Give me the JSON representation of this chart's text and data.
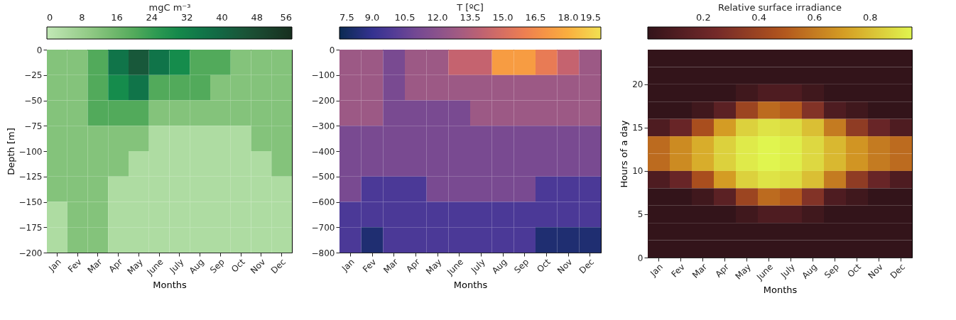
{
  "chart_data": [
    {
      "type": "heatmap",
      "xlabel": "Months",
      "ylabel": "Depth [m]",
      "clabel": "mgC m⁻³",
      "categories": [
        "Jan",
        "Fev",
        "Mar",
        "Apr",
        "May",
        "June",
        "July",
        "Aug",
        "Sep",
        "Oct",
        "Nov",
        "Dec"
      ],
      "ylim": [
        -200,
        0
      ],
      "yticks": [
        0,
        -25,
        -50,
        -75,
        -100,
        -125,
        -150,
        -175,
        -200
      ],
      "clim": [
        0,
        56
      ],
      "cticks": [
        0,
        8,
        16,
        24,
        32,
        40,
        48,
        56
      ],
      "colors": [
        "#c2e8b6",
        "#94cb87",
        "#5cae5e",
        "#16904c",
        "#0f6f48",
        "#1c4f35",
        "#172f1f"
      ],
      "cells": [
        [
          12,
          12,
          20,
          36,
          44,
          36,
          29,
          20,
          20,
          12,
          12,
          12
        ],
        [
          12,
          12,
          20,
          29,
          36,
          20,
          20,
          20,
          12,
          12,
          12,
          12
        ],
        [
          12,
          12,
          20,
          20,
          20,
          12,
          12,
          12,
          12,
          12,
          12,
          12
        ],
        [
          12,
          12,
          12,
          12,
          12,
          4,
          4,
          4,
          4,
          4,
          12,
          12
        ],
        [
          12,
          12,
          12,
          12,
          4,
          4,
          4,
          4,
          4,
          4,
          4,
          12
        ],
        [
          12,
          12,
          12,
          4,
          4,
          4,
          4,
          4,
          4,
          4,
          4,
          4
        ],
        [
          4,
          12,
          12,
          4,
          4,
          4,
          4,
          4,
          4,
          4,
          4,
          4
        ],
        [
          4,
          12,
          12,
          4,
          4,
          4,
          4,
          4,
          4,
          4,
          4,
          4
        ]
      ]
    },
    {
      "type": "heatmap",
      "xlabel": "Months",
      "clabel": "T [ºC]",
      "categories": [
        "Jan",
        "Fev",
        "Mar",
        "Apr",
        "May",
        "June",
        "July",
        "Aug",
        "Sep",
        "Oct",
        "Nov",
        "Dec"
      ],
      "ylim": [
        -800,
        0
      ],
      "yticks": [
        0,
        -100,
        -200,
        -300,
        -400,
        -500,
        -600,
        -700,
        -800
      ],
      "clim": [
        7.5,
        19.5
      ],
      "cticks": [
        {
          "value": 7.5,
          "label": "7.5"
        },
        {
          "value": 9,
          "label": "9.0"
        },
        {
          "value": 10.5,
          "label": "10.5"
        },
        {
          "value": 12,
          "label": "12.0"
        },
        {
          "value": 13.5,
          "label": "13.5"
        },
        {
          "value": 15,
          "label": "15.0"
        },
        {
          "value": 16.5,
          "label": "16.5"
        },
        {
          "value": 18,
          "label": "18.0"
        },
        {
          "value": 19.5,
          "label": "19.5"
        }
      ],
      "colors": [
        "#0a2a52",
        "#3a3399",
        "#714793",
        "#995887",
        "#c8646d",
        "#ef8050",
        "#fba83c",
        "#f1e152"
      ],
      "cells": [
        [
          12.75,
          12.75,
          11.25,
          12.75,
          12.75,
          14.25,
          14.25,
          17.25,
          17.25,
          15.75,
          14.25,
          12.75
        ],
        [
          12.75,
          12.75,
          11.25,
          12.75,
          12.75,
          12.75,
          12.75,
          12.75,
          12.75,
          12.75,
          12.75,
          12.75
        ],
        [
          12.75,
          12.75,
          11.25,
          11.25,
          11.25,
          11.25,
          12.75,
          12.75,
          12.75,
          12.75,
          12.75,
          12.75
        ],
        [
          11.25,
          11.25,
          11.25,
          11.25,
          11.25,
          11.25,
          11.25,
          11.25,
          11.25,
          11.25,
          11.25,
          11.25
        ],
        [
          11.25,
          11.25,
          11.25,
          11.25,
          11.25,
          11.25,
          11.25,
          11.25,
          11.25,
          11.25,
          11.25,
          11.25
        ],
        [
          11.25,
          9.75,
          9.75,
          9.75,
          11.25,
          11.25,
          11.25,
          11.25,
          11.25,
          9.75,
          9.75,
          9.75
        ],
        [
          9.75,
          9.75,
          9.75,
          9.75,
          9.75,
          9.75,
          9.75,
          9.75,
          9.75,
          9.75,
          9.75,
          9.75
        ],
        [
          9.75,
          8.25,
          9.75,
          9.75,
          9.75,
          9.75,
          9.75,
          9.75,
          9.75,
          8.25,
          8.25,
          8.25
        ]
      ]
    },
    {
      "type": "heatmap",
      "xlabel": "Months",
      "ylabel": "Hours of a day",
      "clabel": "Relative surface irradiance",
      "categories": [
        "Jan",
        "Fev",
        "Mar",
        "Apr",
        "May",
        "June",
        "July",
        "Aug",
        "Sep",
        "Oct",
        "Nov",
        "Dec"
      ],
      "ylim": [
        0,
        24
      ],
      "yticks": [
        0,
        5,
        10,
        15,
        20
      ],
      "clim": [
        0,
        0.95
      ],
      "cticks": [
        0.2,
        0.4,
        0.6,
        0.8
      ],
      "colors": [
        "#33141a",
        "#72282a",
        "#b0521d",
        "#d6a024",
        "#e0f54f"
      ],
      "cells": [
        [
          0,
          0,
          0,
          0,
          0,
          0,
          0,
          0,
          0,
          0,
          0,
          0
        ],
        [
          0,
          0,
          0,
          0,
          0,
          0,
          0,
          0,
          0,
          0,
          0,
          0
        ],
        [
          0,
          0,
          0,
          0,
          0.05,
          0.1,
          0.1,
          0.05,
          0,
          0,
          0,
          0
        ],
        [
          0,
          0,
          0.05,
          0.15,
          0.4,
          0.55,
          0.5,
          0.3,
          0.1,
          0.05,
          0,
          0
        ],
        [
          0.1,
          0.2,
          0.45,
          0.7,
          0.85,
          0.9,
          0.88,
          0.8,
          0.6,
          0.35,
          0.2,
          0.1
        ],
        [
          0.55,
          0.65,
          0.75,
          0.85,
          0.92,
          0.95,
          0.93,
          0.87,
          0.78,
          0.68,
          0.6,
          0.55
        ],
        [
          0.55,
          0.65,
          0.75,
          0.85,
          0.92,
          0.95,
          0.93,
          0.87,
          0.78,
          0.68,
          0.6,
          0.55
        ],
        [
          0.1,
          0.2,
          0.45,
          0.7,
          0.85,
          0.9,
          0.88,
          0.8,
          0.6,
          0.35,
          0.2,
          0.1
        ],
        [
          0,
          0,
          0.05,
          0.15,
          0.4,
          0.55,
          0.5,
          0.3,
          0.1,
          0.05,
          0,
          0
        ],
        [
          0,
          0,
          0,
          0,
          0.05,
          0.1,
          0.1,
          0.05,
          0,
          0,
          0,
          0
        ],
        [
          0,
          0,
          0,
          0,
          0,
          0,
          0,
          0,
          0,
          0,
          0,
          0
        ],
        [
          0,
          0,
          0,
          0,
          0,
          0,
          0,
          0,
          0,
          0,
          0,
          0
        ]
      ]
    }
  ]
}
